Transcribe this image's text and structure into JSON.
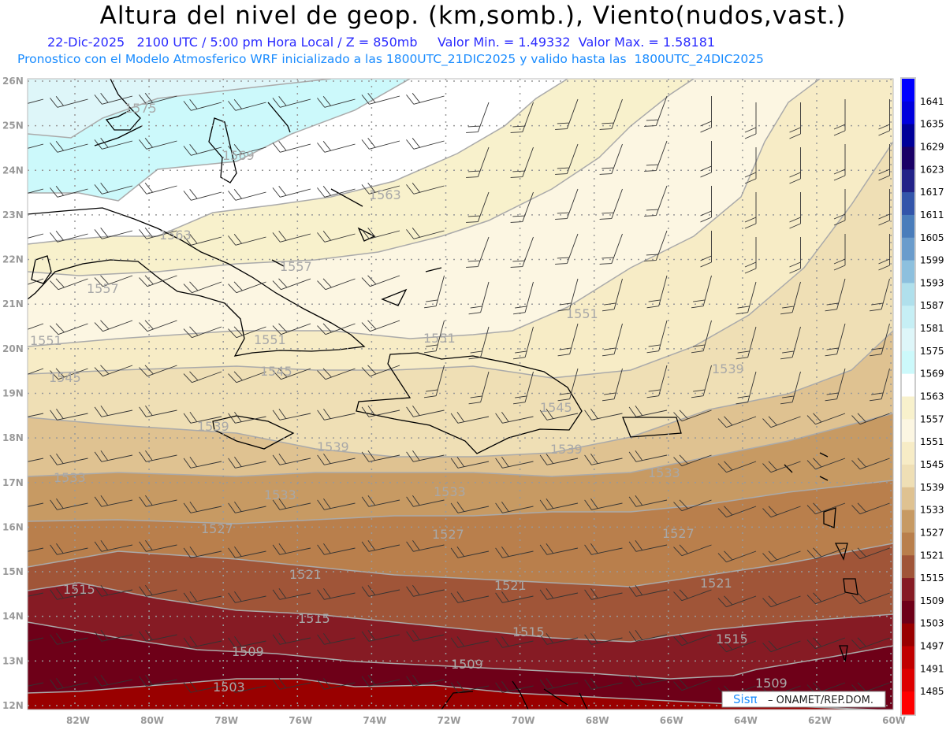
{
  "header": {
    "title": "Altura del nivel de geop. (km,somb.), Viento(nudos,vast.)",
    "subtitle": "22-Dic-2025   2100 UTC / 5:00 pm Hora Local / Z = 850mb     Valor Min. = 1.49332  Valor Max. = 1.58181",
    "model_info": "Pronostico con el Modelo Atmosferico WRF inicializado a las 1800UTC_21DIC2025 y valido hasta las  1800UTC_24DIC2025"
  },
  "axes": {
    "lat_labels": [
      "26N",
      "25N",
      "24N",
      "23N",
      "22N",
      "21N",
      "20N",
      "19N",
      "18N",
      "17N",
      "16N",
      "15N",
      "14N",
      "13N",
      "12N"
    ],
    "lon_labels": [
      "82W",
      "80W",
      "78W",
      "76W",
      "74W",
      "72W",
      "70W",
      "68W",
      "66W",
      "64W",
      "62W",
      "60W"
    ]
  },
  "contour_labels": [
    "1575",
    "1569",
    "1563",
    "1563",
    "1557",
    "1557",
    "1551",
    "1551",
    "1551",
    "1551",
    "1545",
    "1545",
    "1545",
    "1539",
    "1539",
    "1539",
    "1539",
    "1533",
    "1533",
    "1533",
    "1533",
    "1527",
    "1527",
    "1527",
    "1521",
    "1521",
    "1521",
    "1515",
    "1515",
    "1515",
    "1515",
    "1509",
    "1509",
    "1509",
    "1503"
  ],
  "colorbar": {
    "labels": [
      "1641",
      "1635",
      "1629",
      "1623",
      "1617",
      "1611",
      "1605",
      "1599",
      "1593",
      "1587",
      "1581",
      "1575",
      "1569",
      "1563",
      "1557",
      "1551",
      "1545",
      "1539",
      "1533",
      "1527",
      "1521",
      "1515",
      "1509",
      "1503",
      "1497",
      "1491",
      "1485"
    ],
    "colors": [
      "#0000ff",
      "#0000dd",
      "#000099",
      "#1a0066",
      "#222288",
      "#3355aa",
      "#4a7dbb",
      "#6a9ccc",
      "#8dc0de",
      "#b0e0ec",
      "#c6eff5",
      "#def6f9",
      "#ccf9fb",
      "#ffffff",
      "#f8f1cc",
      "#fcf6e2",
      "#f7ecc6",
      "#efdfb5",
      "#dfc291",
      "#c79a63",
      "#b97f4c",
      "#a05538",
      "#861b24",
      "#6e0018",
      "#990000",
      "#c00000",
      "#dd0000",
      "#ff0000"
    ]
  },
  "credit": {
    "logo": "Sisπ",
    "text": "– ONAMET/REP.DOM."
  }
}
